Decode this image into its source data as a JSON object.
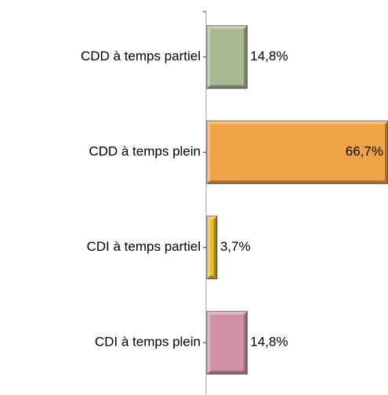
{
  "chart_data": {
    "type": "bar",
    "orientation": "horizontal",
    "categories": [
      "CDD à temps partiel",
      "CDD à temps plein",
      "CDI à temps partiel",
      "CDI à temps plein"
    ],
    "values": [
      14.8,
      66.7,
      3.7,
      14.8
    ],
    "value_labels": [
      "14,8%",
      "66,7%",
      "3,7%",
      "14,8%"
    ],
    "colors": [
      "#a9b892",
      "#f0a246",
      "#e8be2e",
      "#d092a4"
    ]
  }
}
